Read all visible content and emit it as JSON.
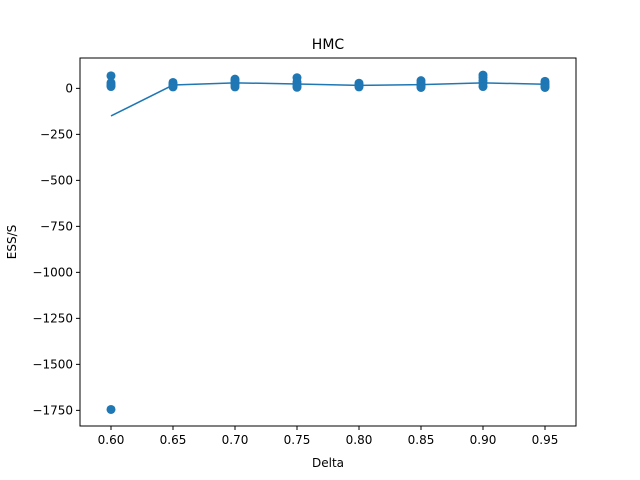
{
  "chart_data": {
    "type": "scatter",
    "title": "HMC",
    "xlabel": "Delta",
    "ylabel": "ESS/S",
    "xlim": [
      0.575,
      0.975
    ],
    "ylim": [
      -1835,
      165
    ],
    "grid": false,
    "x_ticks": [
      0.6,
      0.65,
      0.7,
      0.75,
      0.8,
      0.85,
      0.9,
      0.95
    ],
    "x_tick_labels": [
      "0.60",
      "0.65",
      "0.70",
      "0.75",
      "0.80",
      "0.85",
      "0.90",
      "0.95"
    ],
    "y_ticks": [
      0,
      -250,
      -500,
      -750,
      -1000,
      -1250,
      -1500,
      -1750
    ],
    "y_tick_labels": [
      "0",
      "−250",
      "−500",
      "−750",
      "−1000",
      "−1250",
      "−1500",
      "−1750"
    ],
    "color": "#1f77b4",
    "scatter_points": [
      {
        "x": 0.6,
        "y": 68
      },
      {
        "x": 0.6,
        "y": 30
      },
      {
        "x": 0.6,
        "y": 18
      },
      {
        "x": 0.6,
        "y": 10
      },
      {
        "x": 0.6,
        "y": -1745
      },
      {
        "x": 0.65,
        "y": 32
      },
      {
        "x": 0.65,
        "y": 24
      },
      {
        "x": 0.65,
        "y": 18
      },
      {
        "x": 0.65,
        "y": 12
      },
      {
        "x": 0.65,
        "y": 8
      },
      {
        "x": 0.7,
        "y": 50
      },
      {
        "x": 0.7,
        "y": 40
      },
      {
        "x": 0.7,
        "y": 30
      },
      {
        "x": 0.7,
        "y": 20
      },
      {
        "x": 0.7,
        "y": 8
      },
      {
        "x": 0.75,
        "y": 58
      },
      {
        "x": 0.75,
        "y": 35
      },
      {
        "x": 0.75,
        "y": 22
      },
      {
        "x": 0.75,
        "y": 12
      },
      {
        "x": 0.75,
        "y": 6
      },
      {
        "x": 0.8,
        "y": 28
      },
      {
        "x": 0.8,
        "y": 20
      },
      {
        "x": 0.8,
        "y": 14
      },
      {
        "x": 0.8,
        "y": 8
      },
      {
        "x": 0.85,
        "y": 42
      },
      {
        "x": 0.85,
        "y": 30
      },
      {
        "x": 0.85,
        "y": 18
      },
      {
        "x": 0.85,
        "y": 10
      },
      {
        "x": 0.85,
        "y": 5
      },
      {
        "x": 0.9,
        "y": 72
      },
      {
        "x": 0.9,
        "y": 58
      },
      {
        "x": 0.9,
        "y": 42
      },
      {
        "x": 0.9,
        "y": 28
      },
      {
        "x": 0.9,
        "y": 10
      },
      {
        "x": 0.95,
        "y": 38
      },
      {
        "x": 0.95,
        "y": 28
      },
      {
        "x": 0.95,
        "y": 18
      },
      {
        "x": 0.95,
        "y": 10
      },
      {
        "x": 0.95,
        "y": 5
      }
    ],
    "line": {
      "x": [
        0.6,
        0.65,
        0.7,
        0.75,
        0.8,
        0.85,
        0.9,
        0.95
      ],
      "y": [
        -150,
        18,
        30,
        24,
        16,
        20,
        30,
        22
      ]
    }
  }
}
